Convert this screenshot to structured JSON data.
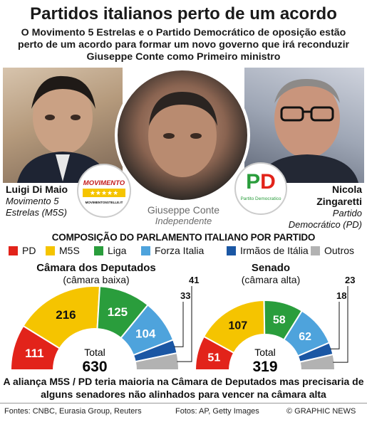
{
  "header": {
    "title": "Partidos italianos perto de um acordo",
    "subtitle": "O Movimento 5 Estrelas e o Partido Democrático de oposição estão perto de um acordo para formar um novo governo que irá reconduzir Giuseppe Conte como Primeiro ministro"
  },
  "people": {
    "left": {
      "name": "Luigi Di Maio",
      "party": "Movimento 5 Estrelas (M5S)"
    },
    "center": {
      "name": "Giuseppe Conte",
      "party": "Independente"
    },
    "right": {
      "name": "Nicola Zingaretti",
      "party": "Partido Democrático (PD)"
    }
  },
  "logos": {
    "m5s": {
      "text": "MOVIMENTO",
      "stars": "★★★★★",
      "url_text": "MOVIMENTO5STELLE.IT"
    },
    "pd": {
      "text": "PD",
      "sub": "Partito Democratico"
    }
  },
  "composition_title": "COMPOSIÇÃO DO PARLAMENTO ITALIANO POR PARTIDO",
  "colors": {
    "PD": "#e2231a",
    "M5S": "#f5c400",
    "Liga": "#2a9d3c",
    "Forza Italia": "#4ea3dc",
    "Irmaos": "#1b57a4",
    "Outros": "#b2b2b2"
  },
  "legend": [
    {
      "label": "PD",
      "key": "PD"
    },
    {
      "label": "M5S",
      "key": "M5S"
    },
    {
      "label": "Liga",
      "key": "Liga"
    },
    {
      "label": "Forza Italia",
      "key": "Forza Italia"
    },
    {
      "label": "Irmãos de Itália",
      "key": "Irmaos"
    },
    {
      "label": "Outros",
      "key": "Outros"
    }
  ],
  "chart_data": [
    {
      "type": "pie",
      "title": "Câmara dos Deputados",
      "subtitle": "(câmara baixa)",
      "total_label": "Total",
      "total": 630,
      "categories": [
        "PD",
        "M5S",
        "Liga",
        "Forza Italia",
        "Irmãos de Itália",
        "Outros"
      ],
      "values": [
        111,
        216,
        125,
        104,
        33,
        41
      ]
    },
    {
      "type": "pie",
      "title": "Senado",
      "subtitle": "(câmara alta)",
      "total_label": "Total",
      "total": 319,
      "categories": [
        "PD",
        "M5S",
        "Liga",
        "Forza Italia",
        "Irmãos de Itália",
        "Outros"
      ],
      "values": [
        51,
        107,
        58,
        62,
        18,
        23
      ]
    }
  ],
  "conclusion": "A aliança M5S / PD teria maioria na Câmara de Deputados mas precisaria de alguns senadores não alinhados para vencer na câmara alta",
  "footer": {
    "sources": "Fontes: CNBC, Eurasia Group, Reuters",
    "photos": "Fotos: AP, Getty Images",
    "credit": "© GRAPHIC NEWS"
  }
}
